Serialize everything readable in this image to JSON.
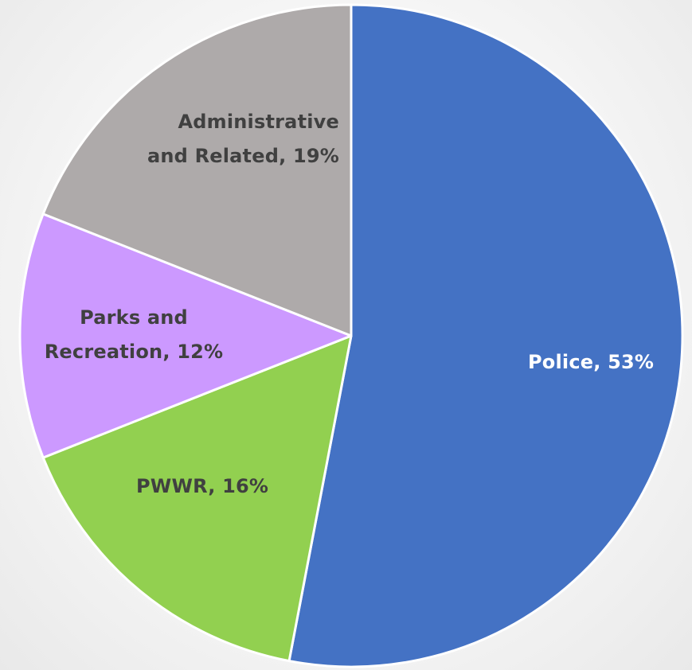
{
  "chart_data": {
    "type": "pie",
    "title": "",
    "legend": "none",
    "slices": [
      {
        "name": "Police",
        "value": 53,
        "label": "Police, 53%",
        "color": "#4472C4",
        "label_color": "#FFFFFF"
      },
      {
        "name": "PWWR",
        "value": 16,
        "label": "PWWR, 16%",
        "color": "#92D050",
        "label_color": "#404040"
      },
      {
        "name": "Parks and Recreation",
        "value": 12,
        "label": "Parks and\nRecreation, 12%",
        "color": "#CC99FF",
        "label_color": "#404040"
      },
      {
        "name": "Administrative and Related",
        "value": 19,
        "label": "Administrative\nand Related, 19%",
        "color": "#AEAAAA",
        "label_color": "#404040"
      }
    ]
  }
}
